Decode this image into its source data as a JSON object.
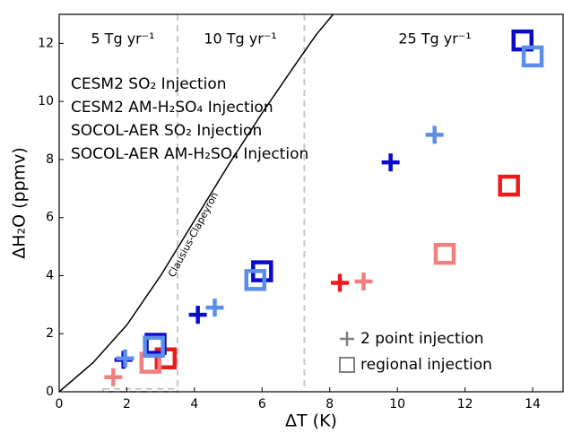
{
  "chart_data": {
    "type": "scatter",
    "x_label": "ΔT (K)",
    "y_label": "ΔH₂O (ppmv)",
    "xlim": [
      0,
      14.9
    ],
    "ylim": [
      0,
      13
    ],
    "xticks": [
      0,
      2,
      4,
      6,
      8,
      10,
      12,
      14
    ],
    "yticks": [
      0,
      2,
      4,
      6,
      8,
      10,
      12
    ],
    "series": [
      {
        "name": "CESM2 SO₂ Injection",
        "color": "#ee1a1a",
        "plus": {
          "x": [
            8.3
          ],
          "y": [
            3.75
          ]
        },
        "square": {
          "x": [
            3.15,
            13.3
          ],
          "y": [
            1.15,
            7.1
          ]
        }
      },
      {
        "name": "CESM2 AM-H₂SO₄ Injection",
        "color": "#f08080",
        "plus": {
          "x": [
            1.6,
            9.0
          ],
          "y": [
            0.5,
            3.8
          ]
        },
        "square": {
          "x": [
            2.7,
            11.4
          ],
          "y": [
            1.0,
            4.75
          ]
        }
      },
      {
        "name": "SOCOL-AER SO₂ Injection",
        "color": "#0a0acc",
        "plus": {
          "x": [
            1.9,
            4.1,
            9.8
          ],
          "y": [
            1.1,
            2.65,
            7.9
          ]
        },
        "square": {
          "x": [
            2.85,
            6.0,
            13.7
          ],
          "y": [
            1.65,
            4.15,
            12.1
          ]
        }
      },
      {
        "name": "SOCOL-AER AM-H₂SO₄ Injection",
        "color": "#5b8ee8",
        "plus": {
          "x": [
            1.95,
            4.6,
            11.1
          ],
          "y": [
            1.15,
            2.9,
            8.85
          ]
        },
        "square": {
          "x": [
            2.8,
            5.8,
            14.0
          ],
          "y": [
            1.55,
            3.85,
            11.55
          ]
        }
      }
    ],
    "marker_legend": [
      "2 point injection",
      "regional injection"
    ],
    "annotations": [
      "5 Tg yr⁻¹",
      "10 Tg yr⁻¹",
      "25 Tg yr⁻¹"
    ],
    "vlines": [
      3.5,
      7.25
    ],
    "region_box": {
      "x": [
        1.3,
        3.5
      ],
      "y": [
        0,
        0.1
      ]
    },
    "curve": {
      "label": "Clausius-Clapeyron",
      "x": [
        0,
        1,
        2,
        3,
        4,
        5,
        6,
        7,
        7.6,
        8.1
      ],
      "y": [
        0,
        1.0,
        2.3,
        4.0,
        5.9,
        7.8,
        9.6,
        11.3,
        12.3,
        13
      ]
    }
  }
}
